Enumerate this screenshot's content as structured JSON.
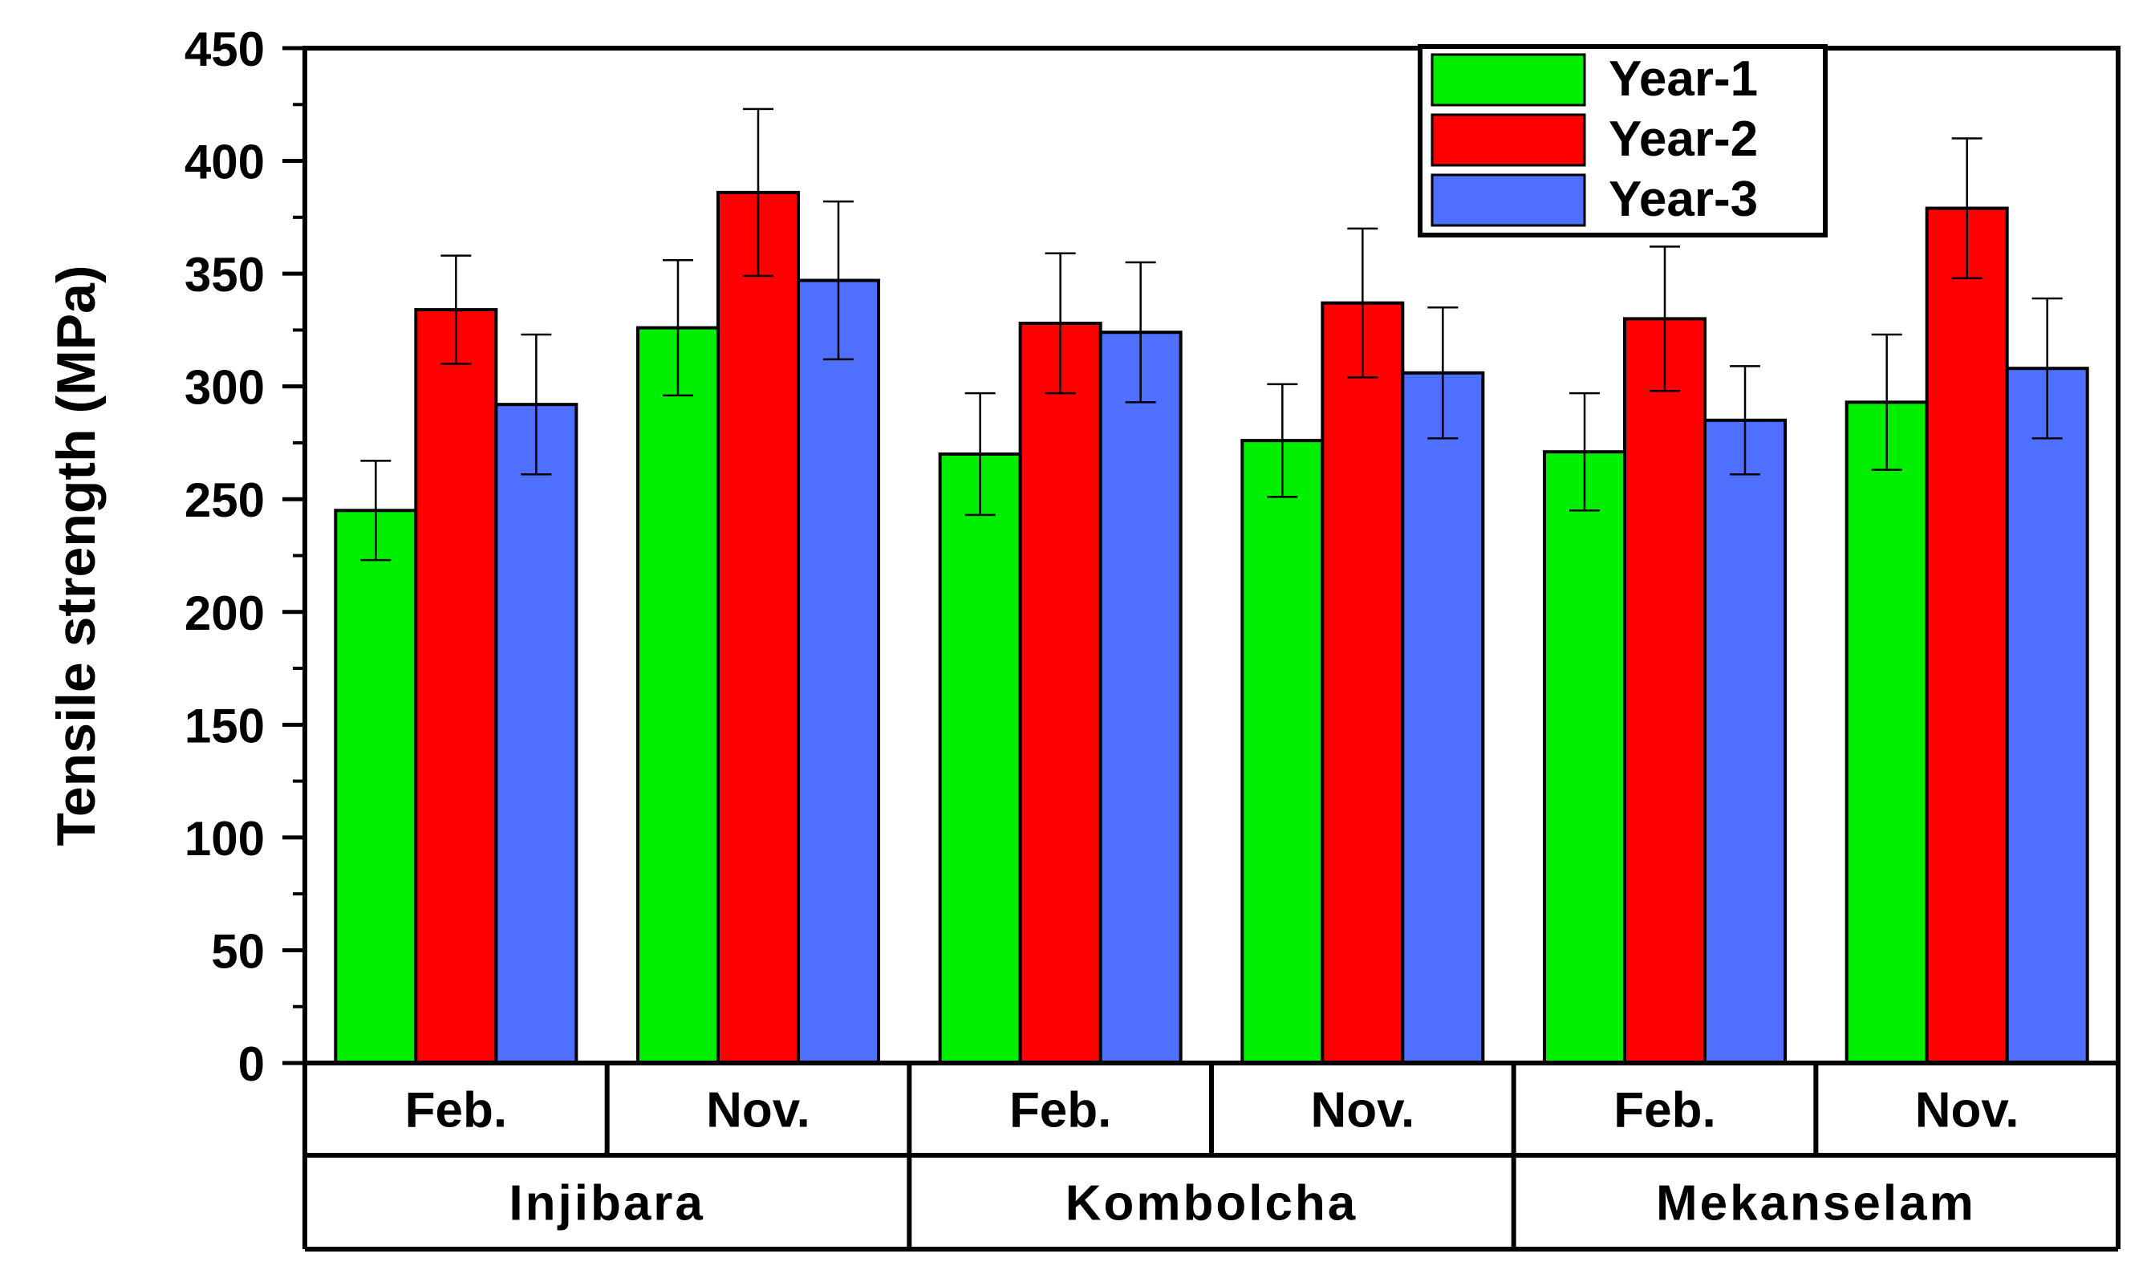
{
  "chart_data": {
    "type": "bar",
    "ylabel": "Tensile strength (MPa)",
    "ylim": [
      0,
      450
    ],
    "yticks": [
      0,
      50,
      100,
      150,
      200,
      250,
      300,
      350,
      400,
      450
    ],
    "categories": [
      "Feb.",
      "Nov.",
      "Feb.",
      "Nov.",
      "Feb.",
      "Nov."
    ],
    "groups": [
      "Injibara",
      "Kombolcha",
      "Mekanselam"
    ],
    "legend_position": "top-right",
    "series": [
      {
        "name": "Year-1",
        "color": "#00ee00",
        "values": [
          245,
          326,
          270,
          276,
          271,
          293
        ],
        "errors": [
          22,
          30,
          27,
          25,
          26,
          30
        ]
      },
      {
        "name": "Year-2",
        "color": "#ff0000",
        "values": [
          334,
          386,
          328,
          337,
          330,
          379
        ],
        "errors": [
          24,
          37,
          31,
          33,
          32,
          31
        ]
      },
      {
        "name": "Year-3",
        "color": "#4f6fff",
        "values": [
          292,
          347,
          324,
          306,
          285,
          308
        ],
        "errors": [
          31,
          35,
          31,
          29,
          24,
          31
        ]
      }
    ]
  }
}
